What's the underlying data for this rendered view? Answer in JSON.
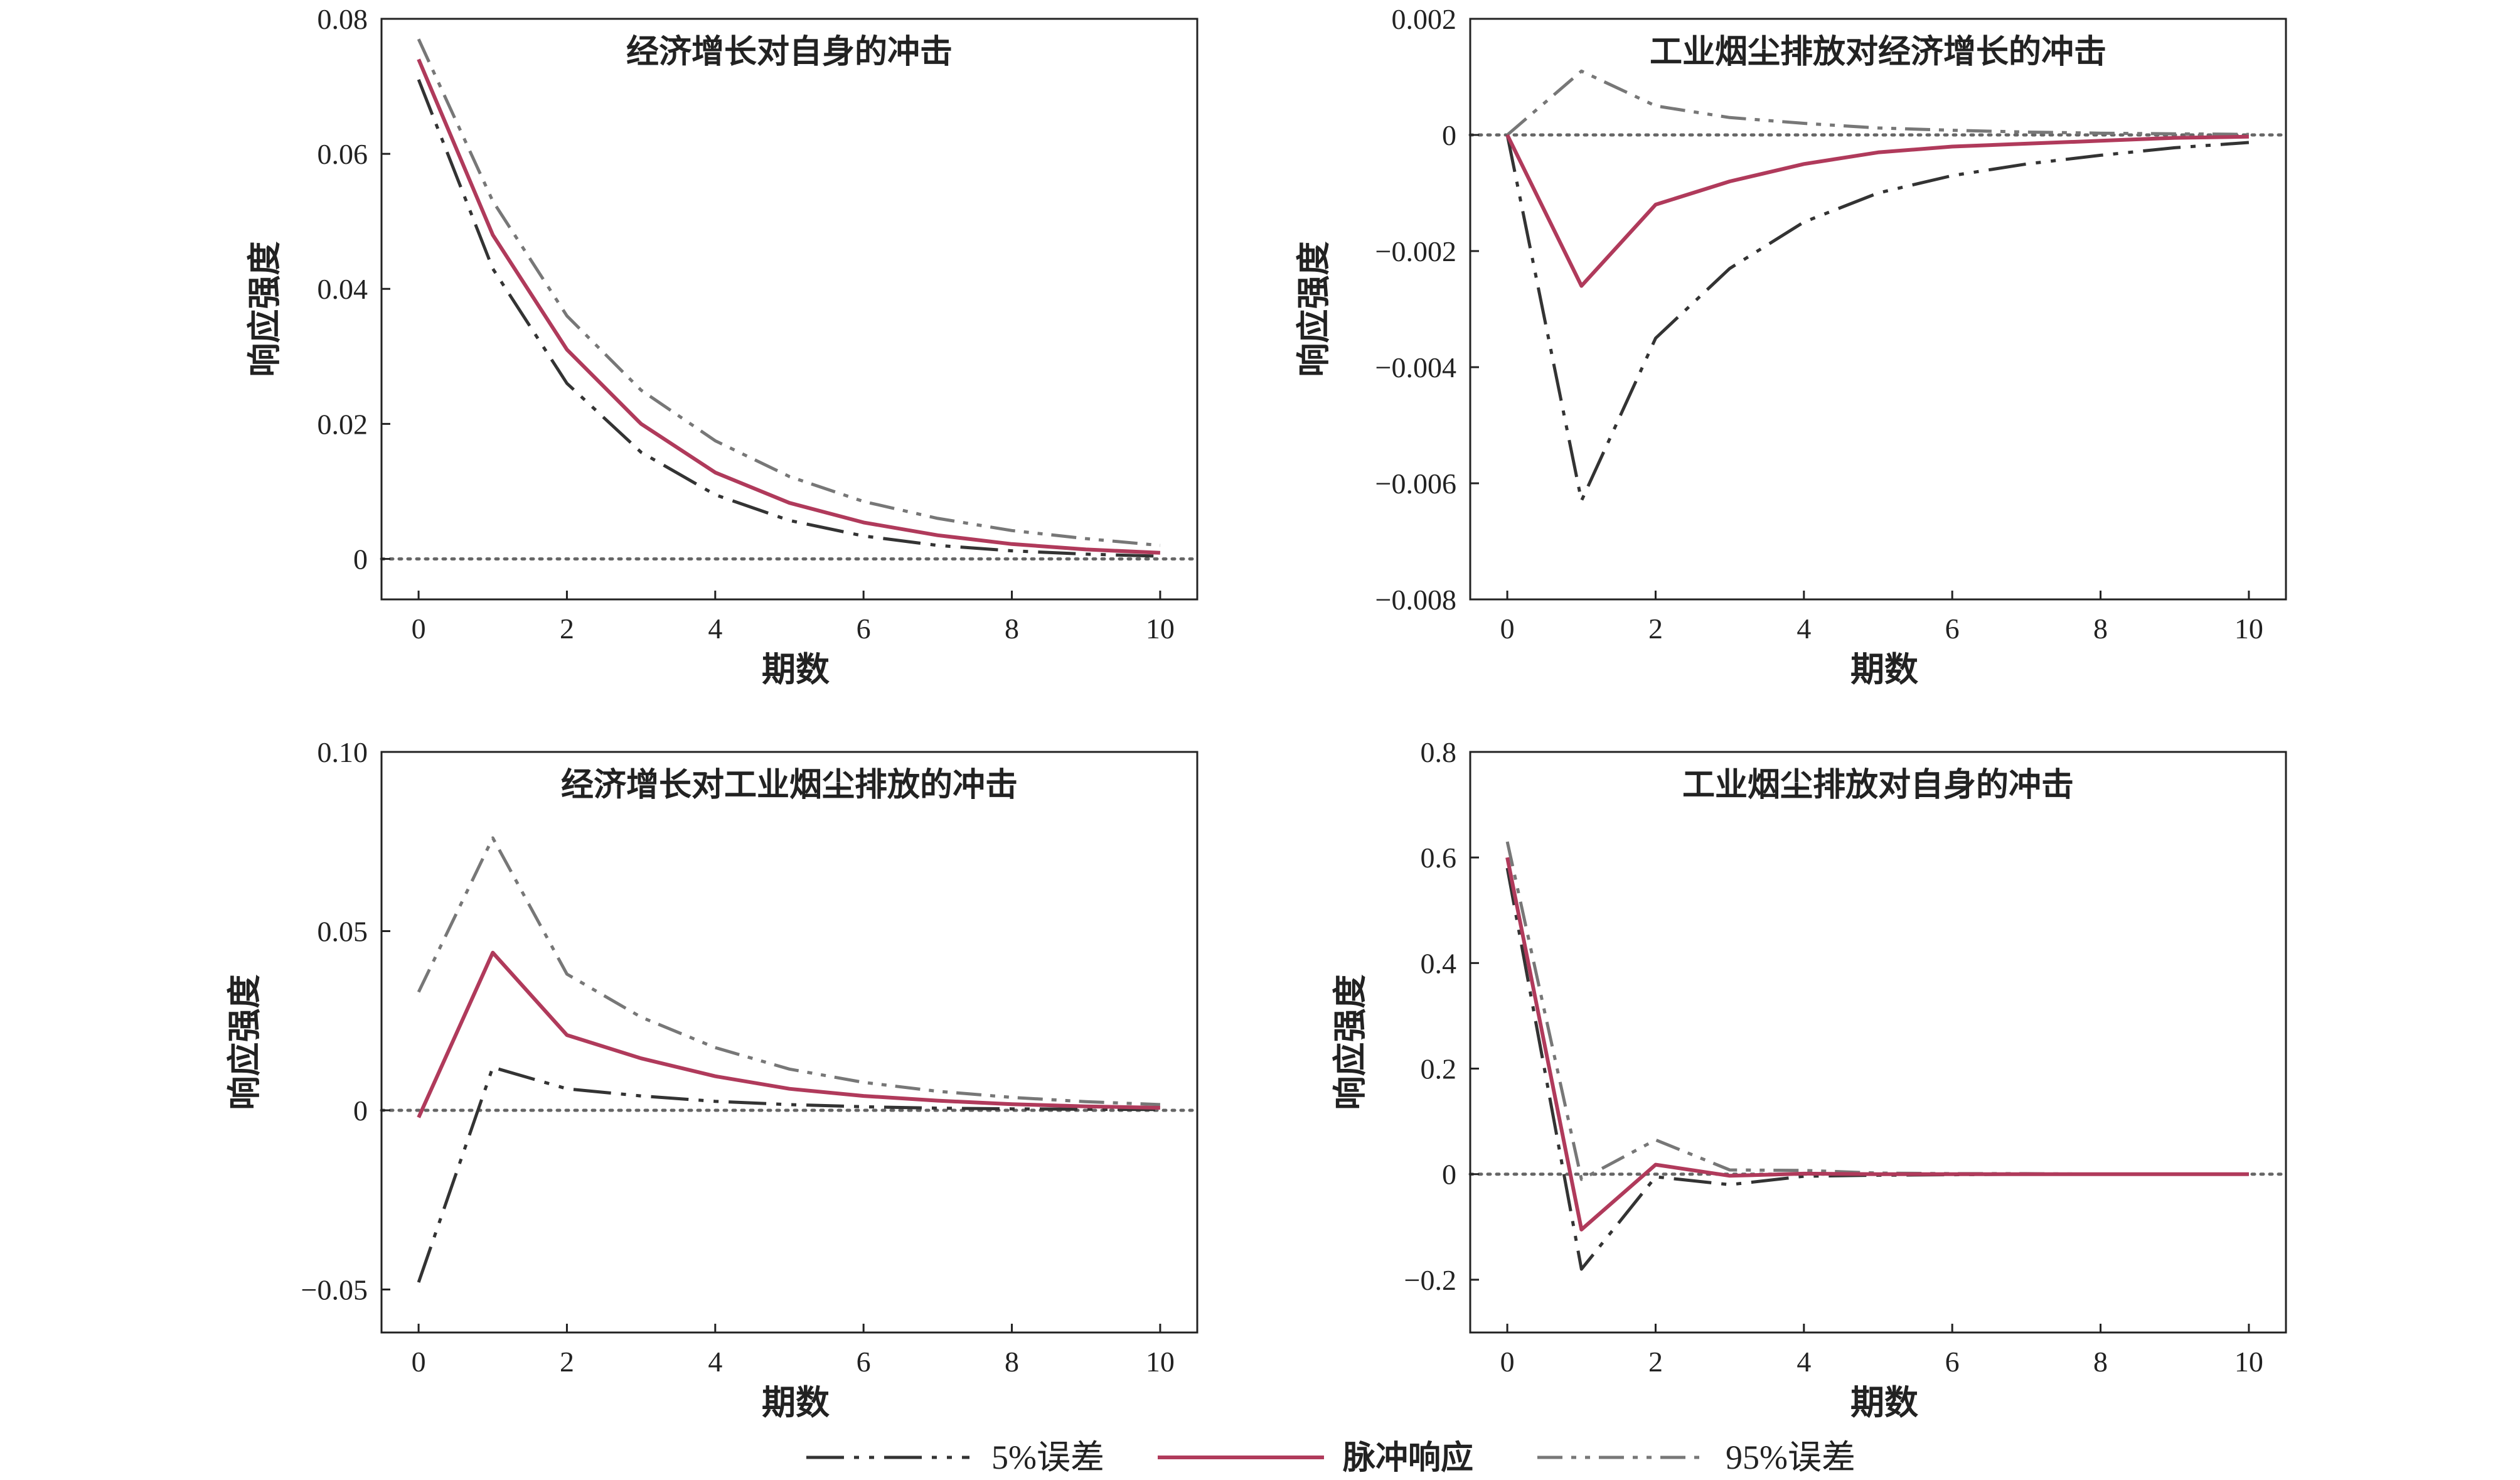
{
  "styles": {
    "impulse_color": "#b03a5b",
    "lower_color": "#333333",
    "upper_color": "#777777",
    "axis_color": "#222222",
    "zero_line_color": "#666666"
  },
  "legend": [
    {
      "key": "lower",
      "label": "5%误差"
    },
    {
      "key": "impulse",
      "label": "脉冲响应"
    },
    {
      "key": "upper",
      "label": "95%误差"
    }
  ],
  "chart_data": [
    {
      "type": "line",
      "title": "经济增长对自身的冲击",
      "xlabel": "期数",
      "ylabel": "响应强度",
      "xlim": [
        -0.5,
        10.5
      ],
      "ylim": [
        -0.006,
        0.08
      ],
      "xticks": [
        0,
        2,
        4,
        6,
        8,
        10
      ],
      "yticks": [
        0,
        0.02,
        0.04,
        0.06,
        0.08
      ],
      "ytick_labels": [
        "0",
        "0.02",
        "0.04",
        "0.06",
        "0.08"
      ],
      "x": [
        0,
        1,
        2,
        3,
        4,
        5,
        6,
        7,
        8,
        9,
        10
      ],
      "series": [
        {
          "key": "impulse",
          "values": [
            0.074,
            0.048,
            0.031,
            0.02,
            0.0128,
            0.0083,
            0.0054,
            0.0035,
            0.0022,
            0.0014,
            0.0009
          ]
        },
        {
          "key": "lower",
          "values": [
            0.071,
            0.043,
            0.026,
            0.0158,
            0.0095,
            0.0057,
            0.0034,
            0.002,
            0.0012,
            0.0007,
            0.0004
          ]
        },
        {
          "key": "upper",
          "values": [
            0.077,
            0.053,
            0.036,
            0.025,
            0.0175,
            0.0122,
            0.0085,
            0.006,
            0.0042,
            0.003,
            0.002
          ]
        }
      ]
    },
    {
      "type": "line",
      "title": "工业烟尘排放对经济增长的冲击",
      "xlabel": "期数",
      "ylabel": "响应强度",
      "xlim": [
        -0.5,
        10.5
      ],
      "ylim": [
        -0.008,
        0.002
      ],
      "xticks": [
        0,
        2,
        4,
        6,
        8,
        10
      ],
      "yticks": [
        -0.008,
        -0.006,
        -0.004,
        -0.002,
        0,
        0.002
      ],
      "ytick_labels": [
        "−0.008",
        "−0.006",
        "−0.004",
        "−0.002",
        "0",
        "0.002"
      ],
      "x": [
        0,
        1,
        2,
        3,
        4,
        5,
        6,
        7,
        8,
        9,
        10
      ],
      "series": [
        {
          "key": "impulse",
          "values": [
            0,
            -0.0026,
            -0.0012,
            -0.0008,
            -0.0005,
            -0.0003,
            -0.0002,
            -0.00015,
            -0.0001,
            -5e-05,
            -3e-05
          ]
        },
        {
          "key": "lower",
          "values": [
            0,
            -0.0063,
            -0.0035,
            -0.0023,
            -0.0015,
            -0.001,
            -0.0007,
            -0.0005,
            -0.00035,
            -0.00022,
            -0.00013
          ]
        },
        {
          "key": "upper",
          "values": [
            0,
            0.0011,
            0.0005,
            0.0003,
            0.0002,
            0.00012,
            8e-05,
            5e-05,
            3e-05,
            2e-05,
            1e-05
          ]
        }
      ]
    },
    {
      "type": "line",
      "title": "经济增长对工业烟尘排放的冲击",
      "xlabel": "期数",
      "ylabel": "响应强度",
      "xlim": [
        -0.5,
        10.5
      ],
      "ylim": [
        -0.062,
        0.1
      ],
      "xticks": [
        0,
        2,
        4,
        6,
        8,
        10
      ],
      "yticks": [
        -0.05,
        0,
        0.05,
        0.1
      ],
      "ytick_labels": [
        "−0.05",
        "0",
        "0.05",
        "0.10"
      ],
      "x": [
        0,
        1,
        2,
        3,
        4,
        5,
        6,
        7,
        8,
        9,
        10
      ],
      "series": [
        {
          "key": "impulse",
          "values": [
            -0.002,
            0.044,
            0.021,
            0.0145,
            0.0095,
            0.006,
            0.004,
            0.0027,
            0.0017,
            0.0011,
            0.0007
          ]
        },
        {
          "key": "lower",
          "values": [
            -0.048,
            0.012,
            0.006,
            0.004,
            0.0025,
            0.0016,
            0.001,
            0.0006,
            0.0004,
            0.0003,
            0.0002
          ]
        },
        {
          "key": "upper",
          "values": [
            0.033,
            0.076,
            0.038,
            0.026,
            0.0175,
            0.0115,
            0.0078,
            0.0053,
            0.0036,
            0.0024,
            0.0016
          ]
        }
      ]
    },
    {
      "type": "line",
      "title": "工业烟尘排放对自身的冲击",
      "xlabel": "期数",
      "ylabel": "响应强度",
      "xlim": [
        -0.5,
        10.5
      ],
      "ylim": [
        -0.3,
        0.8
      ],
      "xticks": [
        0,
        2,
        4,
        6,
        8,
        10
      ],
      "yticks": [
        -0.2,
        0,
        0.2,
        0.4,
        0.6,
        0.8
      ],
      "ytick_labels": [
        "−0.2",
        "0",
        "0.2",
        "0.4",
        "0.6",
        "0.8"
      ],
      "x": [
        0,
        1,
        2,
        3,
        4,
        5,
        6,
        7,
        8,
        9,
        10
      ],
      "series": [
        {
          "key": "impulse",
          "values": [
            0.6,
            -0.105,
            0.018,
            -0.003,
            0.001,
            0,
            0,
            0,
            0,
            0,
            0
          ]
        },
        {
          "key": "lower",
          "values": [
            0.58,
            -0.18,
            -0.005,
            -0.02,
            -0.004,
            -0.002,
            -0.001,
            0,
            0,
            0,
            0
          ]
        },
        {
          "key": "upper",
          "values": [
            0.63,
            -0.01,
            0.065,
            0.008,
            0.007,
            0.002,
            0.001,
            0.001,
            0,
            0,
            0
          ]
        }
      ]
    }
  ]
}
